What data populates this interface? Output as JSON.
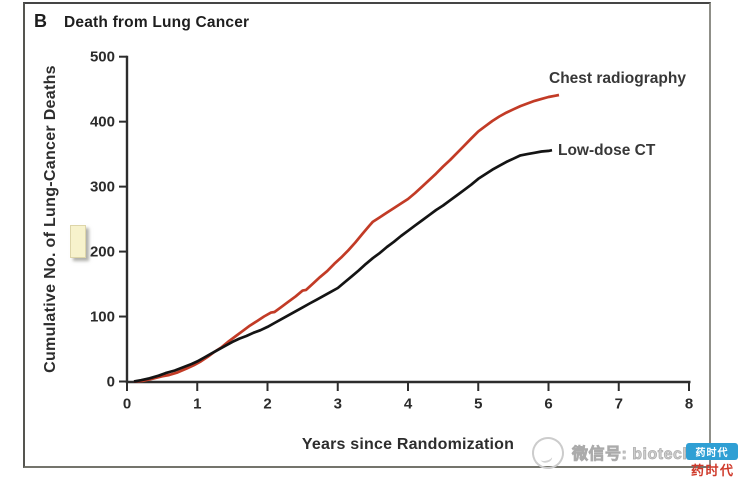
{
  "figure": {
    "panel_letter": "B",
    "title": "Death from Lung Cancer"
  },
  "chart_data": {
    "type": "line",
    "title": "B Death from Lung Cancer",
    "xlabel": "Years since Randomization",
    "ylabel": "Cumulative No. of Lung-Cancer Deaths",
    "xlim": [
      0,
      8
    ],
    "ylim": [
      0,
      500
    ],
    "xticks": [
      0,
      1,
      2,
      3,
      4,
      5,
      6,
      7,
      8
    ],
    "yticks": [
      0,
      100,
      200,
      300,
      400,
      500
    ],
    "grid": false,
    "legend_position": "end-of-line labels",
    "axis_color": "#2d2d2d",
    "series": [
      {
        "name": "Chest radiography",
        "color": "#c23b26",
        "x": [
          0.1,
          0.22,
          0.35,
          0.5,
          0.6,
          0.72,
          0.85,
          0.95,
          1.05,
          1.15,
          1.25,
          1.35,
          1.45,
          1.55,
          1.65,
          1.75,
          1.85,
          1.95,
          2.05,
          2.1,
          2.2,
          2.3,
          2.4,
          2.5,
          2.55,
          2.65,
          2.75,
          2.85,
          2.95,
          3.05,
          3.15,
          3.25,
          3.35,
          3.45,
          3.5,
          3.6,
          3.7,
          3.8,
          3.9,
          4.0,
          4.1,
          4.2,
          4.3,
          4.4,
          4.5,
          4.6,
          4.7,
          4.8,
          4.9,
          5.0,
          5.1,
          5.2,
          5.3,
          5.4,
          5.5,
          5.6,
          5.7,
          5.8,
          5.9,
          6.0,
          6.1,
          6.15
        ],
        "y": [
          0,
          1,
          4,
          8,
          10,
          14,
          20,
          25,
          31,
          38,
          46,
          53,
          62,
          70,
          78,
          86,
          93,
          100,
          106,
          107,
          115,
          123,
          131,
          140,
          141,
          151,
          161,
          170,
          181,
          191,
          202,
          214,
          227,
          240,
          246,
          253,
          260,
          267,
          274,
          281,
          290,
          300,
          310,
          320,
          331,
          341,
          352,
          363,
          374,
          385,
          393,
          401,
          408,
          414,
          419,
          424,
          428,
          432,
          435,
          438,
          440,
          441
        ]
      },
      {
        "name": "Low-dose CT",
        "color": "#141414",
        "x": [
          0.1,
          0.2,
          0.32,
          0.45,
          0.55,
          0.68,
          0.8,
          0.92,
          1.0,
          1.1,
          1.2,
          1.3,
          1.4,
          1.5,
          1.6,
          1.7,
          1.8,
          1.9,
          2.0,
          2.1,
          2.2,
          2.3,
          2.4,
          2.5,
          2.6,
          2.7,
          2.8,
          2.9,
          3.0,
          3.1,
          3.2,
          3.3,
          3.4,
          3.5,
          3.6,
          3.7,
          3.8,
          3.9,
          4.0,
          4.1,
          4.2,
          4.3,
          4.4,
          4.5,
          4.6,
          4.7,
          4.8,
          4.9,
          5.0,
          5.1,
          5.2,
          5.3,
          5.4,
          5.5,
          5.6,
          5.7,
          5.8,
          5.9,
          6.0,
          6.05
        ],
        "y": [
          0,
          2,
          5,
          9,
          13,
          17,
          22,
          27,
          31,
          37,
          43,
          49,
          55,
          61,
          66,
          70,
          75,
          79,
          84,
          90,
          96,
          102,
          108,
          114,
          120,
          126,
          132,
          138,
          144,
          153,
          162,
          171,
          181,
          190,
          198,
          207,
          215,
          224,
          232,
          240,
          248,
          256,
          264,
          271,
          279,
          287,
          295,
          303,
          312,
          319,
          326,
          332,
          338,
          343,
          348,
          350,
          352,
          354,
          355,
          356
        ]
      }
    ]
  },
  "watermark": {
    "wechat_text": "微信号: biotech",
    "badge_text": "药时代",
    "brand_text": "药时代"
  }
}
